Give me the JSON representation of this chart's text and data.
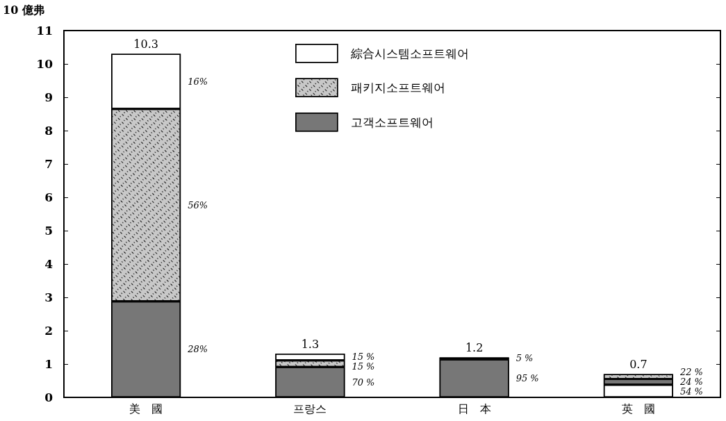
{
  "chart_data": {
    "type": "bar",
    "stacked": true,
    "ylabel": "10 億弗",
    "categories": [
      "美　國",
      "프랑스",
      "日　本",
      "英　國"
    ],
    "series": [
      {
        "color": "#ffffff",
        "values": [
          null,
          null,
          null,
          0.38
        ]
      },
      {
        "name": "고객소프트웨어",
        "color": "#777777",
        "values": [
          2.88,
          0.91,
          1.14,
          0.17
        ]
      },
      {
        "name": "패키지소프트웨어",
        "color": "#c8c8c8",
        "values": [
          5.77,
          0.2,
          null,
          0.15
        ]
      },
      {
        "name": "綜合시스템소프트웨어",
        "color": "#ffffff",
        "values": [
          1.65,
          0.2,
          0.06,
          null
        ]
      }
    ],
    "totals": [
      "10.3",
      "1.3",
      "1.2",
      "0.7"
    ],
    "annotations": [
      "16%",
      "56%",
      "28%",
      "15 %",
      "15 %",
      "70 %",
      "5 %",
      "95 %",
      "22 %",
      "24 %",
      "54 %"
    ],
    "ylim": [
      0,
      11
    ],
    "yticks": [
      0,
      1,
      2,
      3,
      4,
      5,
      6,
      7,
      8,
      9,
      10,
      11
    ],
    "grid": false,
    "legend": "top"
  }
}
